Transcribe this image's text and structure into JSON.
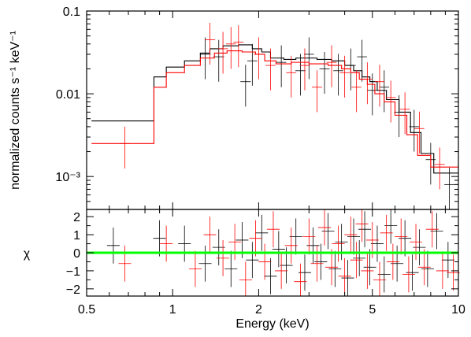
{
  "chart_data": [
    {
      "type": "line",
      "panel": "spectrum",
      "xlabel": "Energy (keV)",
      "ylabel": "normalized counts s⁻¹ keV⁻¹",
      "xscale": "log",
      "yscale": "log",
      "xlim": [
        0.5,
        10
      ],
      "ylim": [
        0.0004,
        0.1
      ],
      "y_ticks": [
        {
          "value": 0.1,
          "label": "0.1"
        },
        {
          "value": 0.01,
          "label": "0.01"
        },
        {
          "value": 0.001,
          "label": "10⁻³"
        }
      ],
      "series": [
        {
          "color": "#000000",
          "model_steps": [
            [
              0.52,
              0.0047
            ],
            [
              0.86,
              0.0047
            ],
            [
              0.86,
              0.016
            ],
            [
              0.95,
              0.016
            ],
            [
              0.95,
              0.021
            ],
            [
              1.1,
              0.021
            ],
            [
              1.1,
              0.025
            ],
            [
              1.25,
              0.025
            ],
            [
              1.25,
              0.031
            ],
            [
              1.35,
              0.031
            ],
            [
              1.35,
              0.035
            ],
            [
              1.5,
              0.035
            ],
            [
              1.5,
              0.038
            ],
            [
              1.7,
              0.038
            ],
            [
              1.7,
              0.039
            ],
            [
              1.9,
              0.039
            ],
            [
              1.9,
              0.035
            ],
            [
              2.05,
              0.035
            ],
            [
              2.05,
              0.032
            ],
            [
              2.2,
              0.032
            ],
            [
              2.2,
              0.027
            ],
            [
              2.45,
              0.027
            ],
            [
              2.45,
              0.026
            ],
            [
              2.7,
              0.026
            ],
            [
              2.7,
              0.027
            ],
            [
              3.2,
              0.027
            ],
            [
              3.2,
              0.026
            ],
            [
              3.6,
              0.026
            ],
            [
              3.6,
              0.025
            ],
            [
              4.0,
              0.025
            ],
            [
              4.0,
              0.022
            ],
            [
              4.3,
              0.022
            ],
            [
              4.3,
              0.019
            ],
            [
              4.6,
              0.019
            ],
            [
              4.6,
              0.016
            ],
            [
              4.9,
              0.016
            ],
            [
              4.9,
              0.014
            ],
            [
              5.2,
              0.014
            ],
            [
              5.2,
              0.011
            ],
            [
              5.6,
              0.011
            ],
            [
              5.6,
              0.0085
            ],
            [
              6.2,
              0.0085
            ],
            [
              6.2,
              0.006
            ],
            [
              6.8,
              0.006
            ],
            [
              6.8,
              0.0034
            ],
            [
              7.4,
              0.0034
            ],
            [
              7.4,
              0.0019
            ],
            [
              8.2,
              0.0019
            ],
            [
              8.2,
              0.0011
            ],
            [
              10,
              0.0011
            ]
          ],
          "points": [
            [
              1.3,
              0.03,
              0.15
            ],
            [
              1.45,
              0.028,
              0.13
            ],
            [
              1.8,
              0.014,
              0.1
            ],
            [
              1.9,
              0.025,
              0.05
            ],
            [
              2.4,
              0.024,
              0.06
            ],
            [
              2.8,
              0.019,
              0.07
            ],
            [
              3.0,
              0.03,
              0.05
            ],
            [
              3.4,
              0.02,
              0.07
            ],
            [
              3.8,
              0.019,
              0.05
            ],
            [
              4.2,
              0.022,
              0.05
            ],
            [
              4.6,
              0.028,
              0.03
            ],
            [
              5.0,
              0.011,
              0.06
            ],
            [
              5.5,
              0.012,
              0.04
            ],
            [
              6.2,
              0.006,
              0.05
            ],
            [
              7.0,
              0.004,
              0.05
            ],
            [
              8.0,
              0.0016,
              0.05
            ],
            [
              9.3,
              0.0008,
              0.07
            ]
          ]
        },
        {
          "color": "#ff0000",
          "model_steps": [
            [
              0.52,
              0.0025
            ],
            [
              0.86,
              0.0025
            ],
            [
              0.86,
              0.012
            ],
            [
              0.95,
              0.012
            ],
            [
              0.95,
              0.018
            ],
            [
              1.1,
              0.018
            ],
            [
              1.1,
              0.022
            ],
            [
              1.25,
              0.022
            ],
            [
              1.25,
              0.027
            ],
            [
              1.4,
              0.027
            ],
            [
              1.4,
              0.031
            ],
            [
              1.55,
              0.031
            ],
            [
              1.55,
              0.033
            ],
            [
              1.75,
              0.033
            ],
            [
              1.75,
              0.032
            ],
            [
              1.95,
              0.032
            ],
            [
              1.95,
              0.03
            ],
            [
              2.1,
              0.03
            ],
            [
              2.1,
              0.025
            ],
            [
              2.3,
              0.025
            ],
            [
              2.3,
              0.023
            ],
            [
              2.6,
              0.023
            ],
            [
              2.6,
              0.024
            ],
            [
              3.0,
              0.024
            ],
            [
              3.0,
              0.023
            ],
            [
              3.5,
              0.023
            ],
            [
              3.5,
              0.022
            ],
            [
              3.9,
              0.022
            ],
            [
              3.9,
              0.02
            ],
            [
              4.2,
              0.02
            ],
            [
              4.2,
              0.018
            ],
            [
              4.5,
              0.018
            ],
            [
              4.5,
              0.015
            ],
            [
              4.8,
              0.015
            ],
            [
              4.8,
              0.013
            ],
            [
              5.1,
              0.013
            ],
            [
              5.1,
              0.01
            ],
            [
              5.5,
              0.01
            ],
            [
              5.5,
              0.008
            ],
            [
              6.0,
              0.008
            ],
            [
              6.0,
              0.0055
            ],
            [
              6.6,
              0.0055
            ],
            [
              6.6,
              0.0032
            ],
            [
              7.2,
              0.0032
            ],
            [
              7.2,
              0.0018
            ],
            [
              8.0,
              0.0018
            ],
            [
              8.0,
              0.0013
            ],
            [
              10,
              0.0013
            ]
          ],
          "points": [
            [
              0.68,
              0.0025,
              0.1
            ],
            [
              1.35,
              0.045,
              0.08
            ],
            [
              1.5,
              0.035,
              0.08
            ],
            [
              1.6,
              0.04,
              0.06
            ],
            [
              1.7,
              0.042,
              0.06
            ],
            [
              2.0,
              0.03,
              0.06
            ],
            [
              2.2,
              0.022,
              0.05
            ],
            [
              2.6,
              0.018,
              0.07
            ],
            [
              2.9,
              0.022,
              0.07
            ],
            [
              3.2,
              0.012,
              0.08
            ],
            [
              3.6,
              0.024,
              0.06
            ],
            [
              4.0,
              0.018,
              0.06
            ],
            [
              4.4,
              0.012,
              0.06
            ],
            [
              4.8,
              0.015,
              0.05
            ],
            [
              5.3,
              0.014,
              0.05
            ],
            [
              5.8,
              0.009,
              0.05
            ],
            [
              6.5,
              0.0065,
              0.05
            ],
            [
              7.3,
              0.0038,
              0.05
            ],
            [
              8.6,
              0.0014,
              0.06
            ]
          ]
        }
      ]
    },
    {
      "type": "scatter",
      "panel": "residuals",
      "xlabel": "Energy (keV)",
      "ylabel": "χ",
      "xscale": "log",
      "xlim": [
        0.5,
        10
      ],
      "ylim": [
        -2.4,
        2.4
      ],
      "y_ticks": [
        {
          "value": 2,
          "label": "2"
        },
        {
          "value": 1,
          "label": "1"
        },
        {
          "value": 0,
          "label": "0"
        },
        {
          "value": -1,
          "label": "−1"
        },
        {
          "value": -2,
          "label": "−2"
        }
      ],
      "x_ticks": [
        {
          "value": 0.5,
          "label": "0.5"
        },
        {
          "value": 1,
          "label": "1"
        },
        {
          "value": 2,
          "label": "2"
        },
        {
          "value": 5,
          "label": "5"
        },
        {
          "value": 10,
          "label": "10"
        }
      ],
      "zero_line_color": "#00ff00",
      "series": [
        {
          "color": "#000000",
          "points": [
            [
              0.62,
              0.4
            ],
            [
              0.9,
              0.8
            ],
            [
              1.1,
              0.5
            ],
            [
              1.3,
              -0.6
            ],
            [
              1.45,
              0.3
            ],
            [
              1.6,
              -0.9
            ],
            [
              1.75,
              0.7
            ],
            [
              1.9,
              -0.4
            ],
            [
              2.05,
              1.1
            ],
            [
              2.2,
              -1.3
            ],
            [
              2.35,
              0.2
            ],
            [
              2.5,
              -0.7
            ],
            [
              2.7,
              0.9
            ],
            [
              2.9,
              -1.1
            ],
            [
              3.1,
              0.4
            ],
            [
              3.3,
              -0.5
            ],
            [
              3.5,
              1.2
            ],
            [
              3.7,
              -0.9
            ],
            [
              3.9,
              0.6
            ],
            [
              4.1,
              -1.4
            ],
            [
              4.3,
              0.9
            ],
            [
              4.5,
              -0.3
            ],
            [
              4.7,
              1.3
            ],
            [
              4.9,
              -0.8
            ],
            [
              5.2,
              0.5
            ],
            [
              5.5,
              -1.2
            ],
            [
              5.8,
              1.5
            ],
            [
              6.1,
              -0.6
            ],
            [
              6.5,
              0.8
            ],
            [
              6.9,
              -1.1
            ],
            [
              7.3,
              0.3
            ],
            [
              7.8,
              -0.9
            ],
            [
              8.4,
              1.2
            ],
            [
              9.2,
              -0.4
            ]
          ]
        },
        {
          "color": "#ff0000",
          "points": [
            [
              0.68,
              -0.6
            ],
            [
              0.95,
              0.5
            ],
            [
              1.2,
              -0.9
            ],
            [
              1.35,
              1.0
            ],
            [
              1.5,
              -0.3
            ],
            [
              1.65,
              0.6
            ],
            [
              1.8,
              -1.5
            ],
            [
              1.95,
              0.8
            ],
            [
              2.1,
              -0.5
            ],
            [
              2.25,
              1.3
            ],
            [
              2.4,
              -1.0
            ],
            [
              2.6,
              0.4
            ],
            [
              2.8,
              -1.6
            ],
            [
              3.0,
              0.9
            ],
            [
              3.2,
              -0.6
            ],
            [
              3.4,
              1.4
            ],
            [
              3.6,
              -0.8
            ],
            [
              3.8,
              0.5
            ],
            [
              4.0,
              -1.3
            ],
            [
              4.2,
              1.0
            ],
            [
              4.4,
              -0.4
            ],
            [
              4.6,
              1.6
            ],
            [
              4.8,
              -1.0
            ],
            [
              5.0,
              0.7
            ],
            [
              5.3,
              -1.5
            ],
            [
              5.6,
              1.1
            ],
            [
              5.9,
              -0.5
            ],
            [
              6.3,
              0.9
            ],
            [
              6.7,
              -1.2
            ],
            [
              7.1,
              0.6
            ],
            [
              7.6,
              -0.8
            ],
            [
              8.1,
              1.3
            ],
            [
              8.8,
              -1.0
            ],
            [
              9.6,
              -1.1
            ]
          ]
        }
      ]
    }
  ]
}
